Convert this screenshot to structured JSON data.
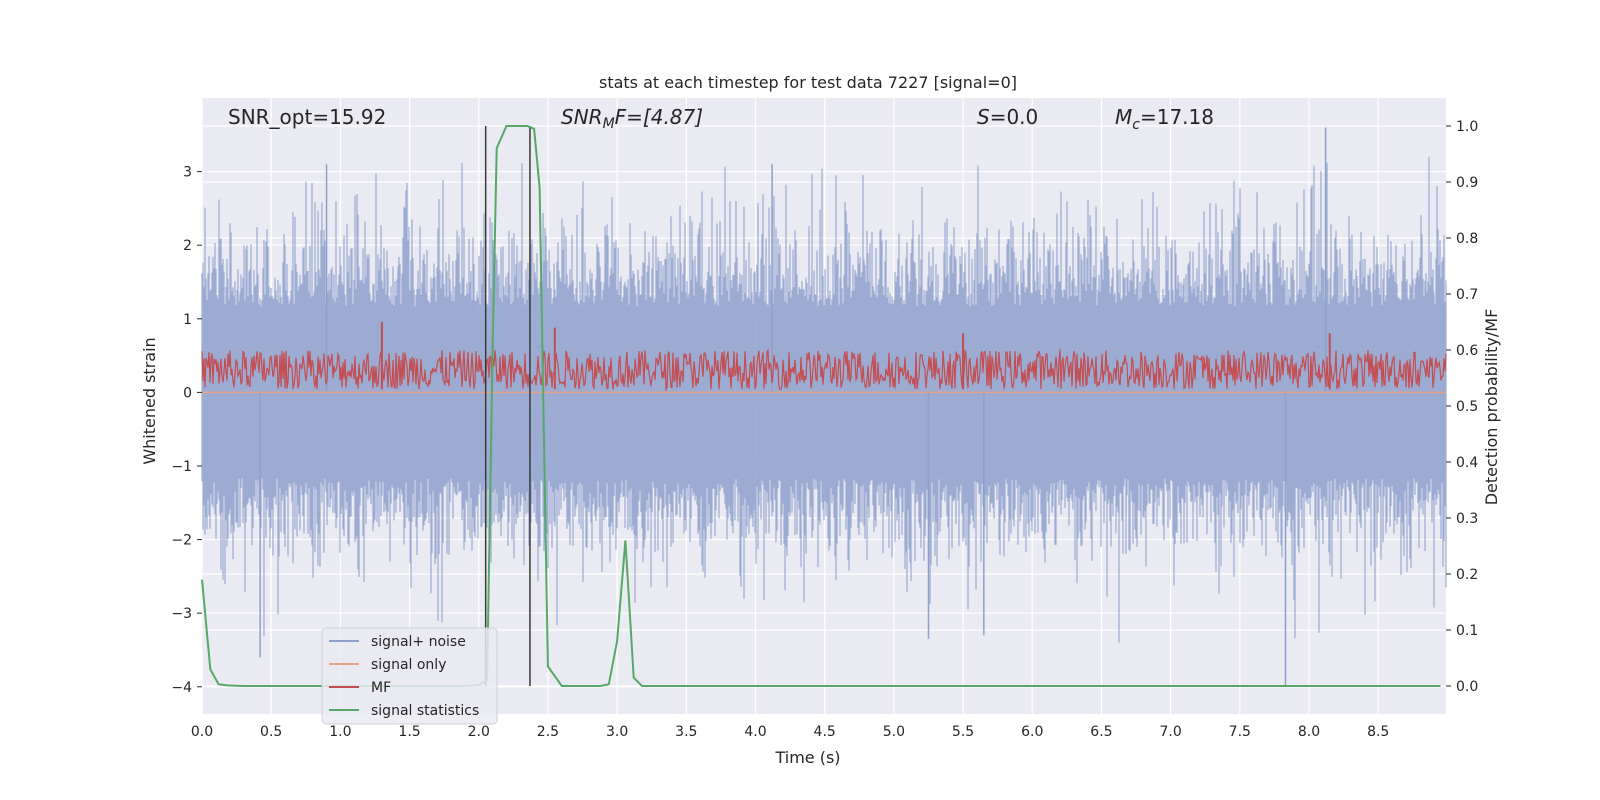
{
  "chart_data": {
    "type": "line",
    "title": "stats at each timestep for test data 7227 [signal=0]",
    "xlabel": "Time (s)",
    "ylabel": "Whitened strain",
    "ylabel_right": "Detection probability/MF",
    "xlim": [
      0,
      8.99
    ],
    "ylim": [
      -4.37,
      4.0
    ],
    "ylim_right": [
      -0.05,
      1.05
    ],
    "grid": true,
    "x_ticks": [
      "0.0",
      "0.5",
      "1.0",
      "1.5",
      "2.0",
      "2.5",
      "3.0",
      "3.5",
      "4.0",
      "4.5",
      "5.0",
      "5.5",
      "6.0",
      "6.5",
      "7.0",
      "7.5",
      "8.0",
      "8.5"
    ],
    "y_ticks": [
      "3",
      "2",
      "1",
      "0",
      "−1",
      "−2",
      "−3",
      "−4"
    ],
    "y_ticks_right": [
      "1.0",
      "0.9",
      "0.8",
      "0.7",
      "0.6",
      "0.5",
      "0.4",
      "0.3",
      "0.2",
      "0.1",
      "0.0"
    ],
    "annotations": {
      "snr_opt": "SNR_opt=15.92",
      "snr_mf_main": "SNR",
      "snr_mf_sub": "M",
      "snr_mf_tail": "F=[4.87]",
      "s_italic": "S",
      "s_value": "=0.0",
      "mc_main": "M",
      "mc_sub": "c",
      "mc_value": "=17.18"
    },
    "vlines": [
      2.05,
      2.37
    ],
    "legend": {
      "placement": "lower-left",
      "entries": [
        "signal+ noise",
        "signal only",
        "MF",
        "signal statistics"
      ]
    },
    "colors": {
      "noise": "#8da0cb",
      "signal_only": "#e8a17e",
      "mf": "#c44e52",
      "statistics": "#55a868",
      "vline": "#3a3a3a",
      "background": "#eaeaf2"
    },
    "series": [
      {
        "name": "signal+ noise",
        "axis": "left",
        "style": "dense noise envelope",
        "typical_range": [
          -1.8,
          1.8
        ],
        "extremes": [
          {
            "x": 0.42,
            "y": -3.6
          },
          {
            "x": 5.25,
            "y": -3.35
          },
          {
            "x": 5.65,
            "y": -3.3
          },
          {
            "x": 7.83,
            "y": -4.0
          },
          {
            "x": 8.12,
            "y": 3.6
          },
          {
            "x": 0.9,
            "y": 3.1
          },
          {
            "x": 4.12,
            "y": 3.1
          }
        ]
      },
      {
        "name": "signal only",
        "axis": "left",
        "x": [
          0,
          8.99
        ],
        "y": [
          0.0,
          0.0
        ]
      },
      {
        "name": "MF",
        "axis": "right",
        "style": "noisy band",
        "typical_range": [
          0.53,
          0.6
        ],
        "peaks": [
          {
            "x": 1.3,
            "y": 0.65
          },
          {
            "x": 2.55,
            "y": 0.64
          },
          {
            "x": 5.5,
            "y": 0.63
          },
          {
            "x": 8.15,
            "y": 0.63
          }
        ]
      },
      {
        "name": "signal statistics",
        "axis": "right",
        "x": [
          0.0,
          0.06,
          0.12,
          0.18,
          0.3,
          1.9,
          2.0,
          2.06,
          2.1,
          2.13,
          2.2,
          2.35,
          2.4,
          2.44,
          2.5,
          2.6,
          2.88,
          2.94,
          3.0,
          3.06,
          3.12,
          3.18,
          8.95
        ],
        "y": [
          0.19,
          0.03,
          0.003,
          0.001,
          0.0,
          0.0,
          0.002,
          0.01,
          0.6,
          0.96,
          1.0,
          1.0,
          0.995,
          0.89,
          0.035,
          0.0,
          0.0,
          0.003,
          0.08,
          0.26,
          0.015,
          0.0,
          0.0
        ]
      }
    ]
  }
}
